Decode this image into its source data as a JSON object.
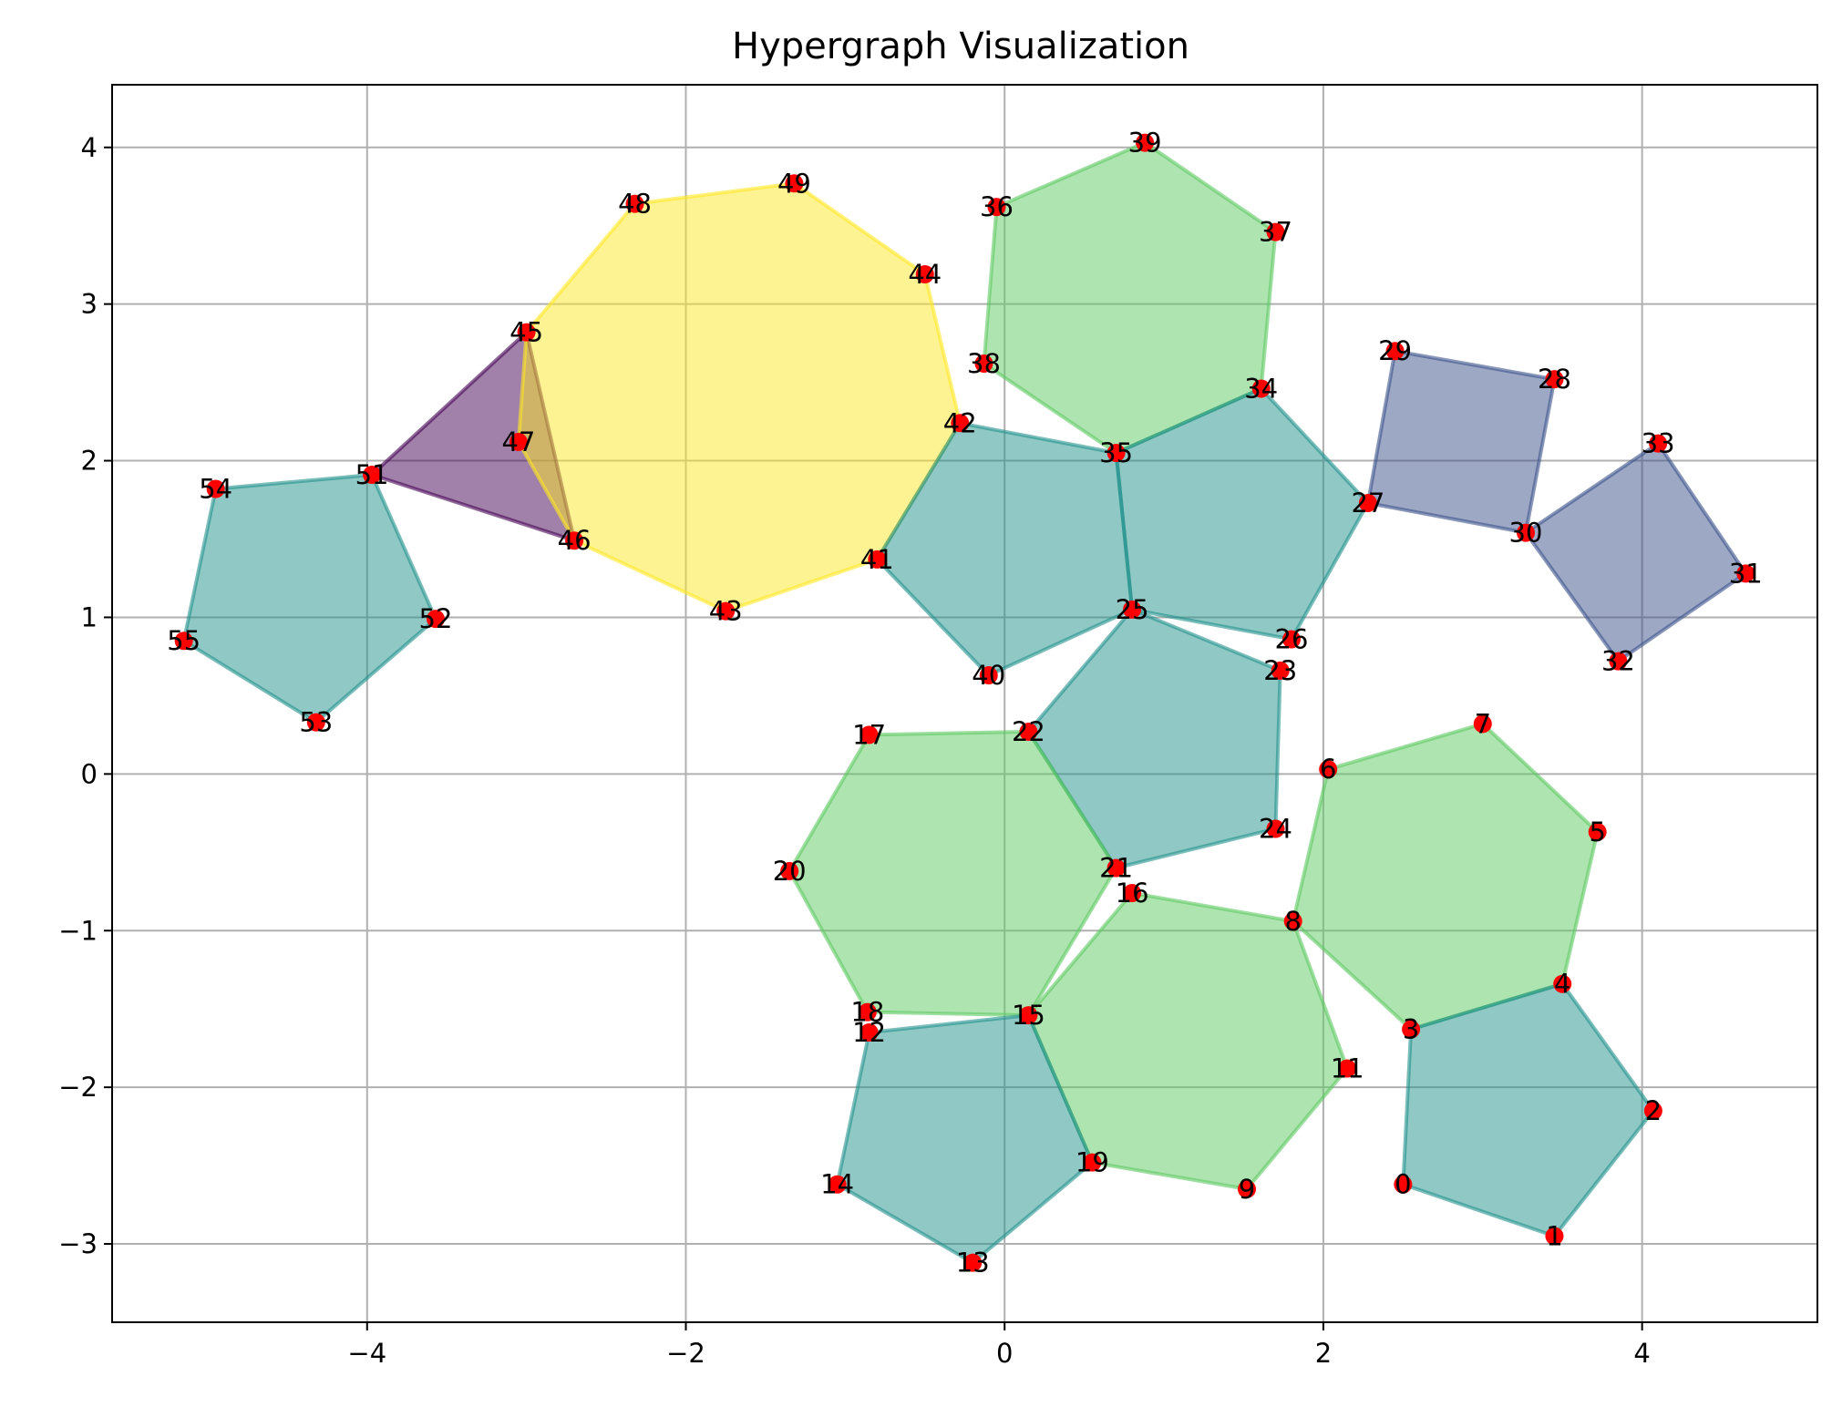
{
  "chart_data": {
    "type": "hypergraph",
    "title": "Hypergraph Visualization",
    "xlim": [
      -5.6,
      5.1
    ],
    "ylim": [
      -3.5,
      4.4
    ],
    "xticks": [
      {
        "value": -4,
        "label": "−4"
      },
      {
        "value": -2,
        "label": "−2"
      },
      {
        "value": 0,
        "label": "0"
      },
      {
        "value": 2,
        "label": "2"
      },
      {
        "value": 4,
        "label": "4"
      }
    ],
    "yticks": [
      {
        "value": -3,
        "label": "−3"
      },
      {
        "value": -2,
        "label": "−2"
      },
      {
        "value": -1,
        "label": "−1"
      },
      {
        "value": 0,
        "label": "0"
      },
      {
        "value": 1,
        "label": "1"
      },
      {
        "value": 2,
        "label": "2"
      },
      {
        "value": 3,
        "label": "3"
      },
      {
        "value": 4,
        "label": "4"
      }
    ],
    "grid": true,
    "node_color": "#ff0000",
    "nodes": [
      {
        "id": "0",
        "x": 2.5,
        "y": -2.62
      },
      {
        "id": "1",
        "x": 3.45,
        "y": -2.95
      },
      {
        "id": "2",
        "x": 4.07,
        "y": -2.15
      },
      {
        "id": "3",
        "x": 2.55,
        "y": -1.63
      },
      {
        "id": "4",
        "x": 3.5,
        "y": -1.34
      },
      {
        "id": "5",
        "x": 3.72,
        "y": -0.37
      },
      {
        "id": "6",
        "x": 2.03,
        "y": 0.03
      },
      {
        "id": "7",
        "x": 3.0,
        "y": 0.32
      },
      {
        "id": "8",
        "x": 1.81,
        "y": -0.94
      },
      {
        "id": "9",
        "x": 1.52,
        "y": -2.65
      },
      {
        "id": "11",
        "x": 2.15,
        "y": -1.88
      },
      {
        "id": "12",
        "x": -0.85,
        "y": -1.65
      },
      {
        "id": "13",
        "x": -0.2,
        "y": -3.12
      },
      {
        "id": "14",
        "x": -1.05,
        "y": -2.62
      },
      {
        "id": "15",
        "x": 0.15,
        "y": -1.54
      },
      {
        "id": "16",
        "x": 0.8,
        "y": -0.76
      },
      {
        "id": "17",
        "x": -0.85,
        "y": 0.25
      },
      {
        "id": "18",
        "x": -0.86,
        "y": -1.52
      },
      {
        "id": "19",
        "x": 0.55,
        "y": -2.48
      },
      {
        "id": "20",
        "x": -1.35,
        "y": -0.62
      },
      {
        "id": "21",
        "x": 0.7,
        "y": -0.6
      },
      {
        "id": "22",
        "x": 0.15,
        "y": 0.27
      },
      {
        "id": "23",
        "x": 1.73,
        "y": 0.66
      },
      {
        "id": "24",
        "x": 1.7,
        "y": -0.35
      },
      {
        "id": "25",
        "x": 0.8,
        "y": 1.05
      },
      {
        "id": "26",
        "x": 1.8,
        "y": 0.86
      },
      {
        "id": "27",
        "x": 2.28,
        "y": 1.73
      },
      {
        "id": "28",
        "x": 3.45,
        "y": 2.52
      },
      {
        "id": "29",
        "x": 2.45,
        "y": 2.7
      },
      {
        "id": "30",
        "x": 3.27,
        "y": 1.54
      },
      {
        "id": "31",
        "x": 4.65,
        "y": 1.28
      },
      {
        "id": "32",
        "x": 3.85,
        "y": 0.72
      },
      {
        "id": "33",
        "x": 4.1,
        "y": 2.11
      },
      {
        "id": "34",
        "x": 1.61,
        "y": 2.46
      },
      {
        "id": "35",
        "x": 0.7,
        "y": 2.05
      },
      {
        "id": "36",
        "x": -0.05,
        "y": 3.62
      },
      {
        "id": "37",
        "x": 1.7,
        "y": 3.46
      },
      {
        "id": "38",
        "x": -0.13,
        "y": 2.62
      },
      {
        "id": "39",
        "x": 0.88,
        "y": 4.03
      },
      {
        "id": "40",
        "x": -0.1,
        "y": 0.63
      },
      {
        "id": "41",
        "x": -0.8,
        "y": 1.37
      },
      {
        "id": "42",
        "x": -0.28,
        "y": 2.24
      },
      {
        "id": "43",
        "x": -1.75,
        "y": 1.04
      },
      {
        "id": "44",
        "x": -0.5,
        "y": 3.19
      },
      {
        "id": "45",
        "x": -3.0,
        "y": 2.82
      },
      {
        "id": "46",
        "x": -2.7,
        "y": 1.49
      },
      {
        "id": "47",
        "x": -3.05,
        "y": 2.12
      },
      {
        "id": "48",
        "x": -2.32,
        "y": 3.64
      },
      {
        "id": "49",
        "x": -1.32,
        "y": 3.77
      },
      {
        "id": "51",
        "x": -3.97,
        "y": 1.91
      },
      {
        "id": "52",
        "x": -3.57,
        "y": 0.99
      },
      {
        "id": "53",
        "x": -4.32,
        "y": 0.33
      },
      {
        "id": "54",
        "x": -4.95,
        "y": 1.82
      },
      {
        "id": "55",
        "x": -5.15,
        "y": 0.85
      }
    ],
    "hyperedges": [
      {
        "nodes": [
          "45",
          "51",
          "46"
        ],
        "color": "#440154"
      },
      {
        "nodes": [
          "51",
          "52",
          "53",
          "55",
          "54"
        ],
        "color": "#21918c"
      },
      {
        "nodes": [
          "45",
          "48",
          "49",
          "44",
          "42",
          "41",
          "43",
          "46",
          "47"
        ],
        "color": "#fde725"
      },
      {
        "nodes": [
          "36",
          "39",
          "37",
          "34",
          "35",
          "38"
        ],
        "color": "#5ec962"
      },
      {
        "nodes": [
          "42",
          "35",
          "25",
          "40",
          "41"
        ],
        "color": "#21918c"
      },
      {
        "nodes": [
          "35",
          "34",
          "27",
          "26",
          "25"
        ],
        "color": "#21918c"
      },
      {
        "nodes": [
          "29",
          "28",
          "30",
          "27"
        ],
        "color": "#3b528b"
      },
      {
        "nodes": [
          "30",
          "33",
          "31",
          "32"
        ],
        "color": "#3b528b"
      },
      {
        "nodes": [
          "22",
          "25",
          "23",
          "24",
          "21"
        ],
        "color": "#21918c"
      },
      {
        "nodes": [
          "6",
          "7",
          "5",
          "4",
          "3",
          "8"
        ],
        "color": "#5ec962"
      },
      {
        "nodes": [
          "17",
          "22",
          "21",
          "15",
          "18",
          "20"
        ],
        "color": "#5ec962"
      },
      {
        "nodes": [
          "16",
          "8",
          "11",
          "9",
          "19",
          "15"
        ],
        "color": "#5ec962"
      },
      {
        "nodes": [
          "12",
          "15",
          "19",
          "13",
          "14"
        ],
        "color": "#21918c"
      },
      {
        "nodes": [
          "3",
          "4",
          "2",
          "1",
          "0"
        ],
        "color": "#21918c"
      }
    ]
  }
}
